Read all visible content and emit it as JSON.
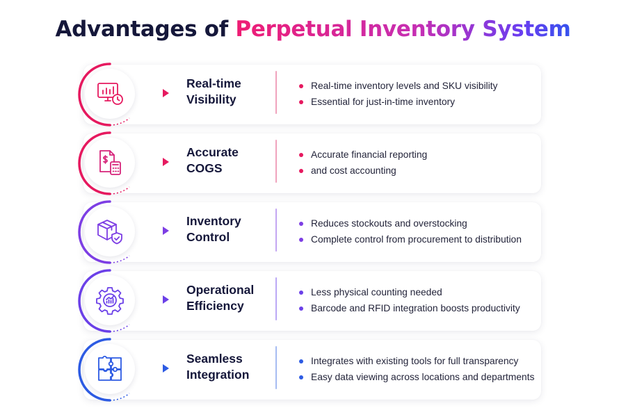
{
  "title": {
    "prefix": "Advantages of ",
    "highlight": "Perpetual Inventory System"
  },
  "colors": {
    "pink": "#e6195f",
    "magenta": "#d6247a",
    "purple": "#7d3ee4",
    "violet": "#6b40e8",
    "blue": "#2d5be3",
    "title_dark": "#15173a"
  },
  "advantages": [
    {
      "icon": "monitor-chart-clock-icon",
      "label_line1": "Real-time",
      "label_line2": "Visibility",
      "bullets": [
        "Real-time inventory levels and SKU visibility",
        "Essential for just-in-time inventory"
      ]
    },
    {
      "icon": "invoice-calculator-icon",
      "label_line1": "Accurate",
      "label_line2": "COGS",
      "bullets": [
        "Accurate financial reporting",
        "and cost accounting"
      ]
    },
    {
      "icon": "box-shield-icon",
      "label_line1": "Inventory",
      "label_line2": "Control",
      "bullets": [
        "Reduces stockouts and overstocking",
        "Complete control from procurement to distribution"
      ]
    },
    {
      "icon": "gear-chart-icon",
      "label_line1": "Operational",
      "label_line2": "Efficiency",
      "bullets": [
        "Less physical counting needed",
        "Barcode and RFID integration boosts productivity"
      ]
    },
    {
      "icon": "puzzle-icon",
      "label_line1": "Seamless",
      "label_line2": "Integration",
      "bullets": [
        "Integrates with existing tools for full transparency",
        "Easy data viewing across locations and departments"
      ]
    }
  ]
}
